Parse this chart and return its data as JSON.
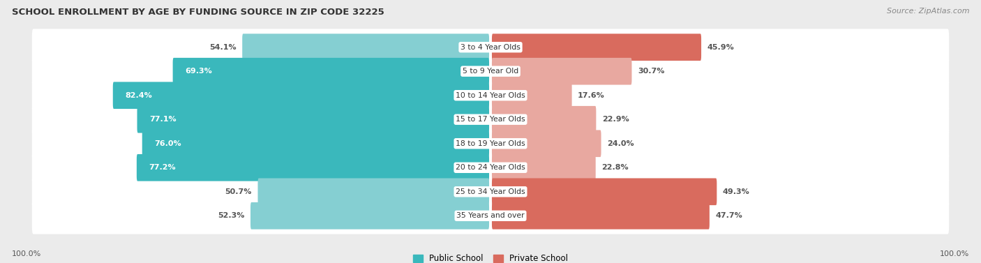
{
  "title": "SCHOOL ENROLLMENT BY AGE BY FUNDING SOURCE IN ZIP CODE 32225",
  "source": "Source: ZipAtlas.com",
  "categories": [
    "3 to 4 Year Olds",
    "5 to 9 Year Old",
    "10 to 14 Year Olds",
    "15 to 17 Year Olds",
    "18 to 19 Year Olds",
    "20 to 24 Year Olds",
    "25 to 34 Year Olds",
    "35 Years and over"
  ],
  "public_values": [
    54.1,
    69.3,
    82.4,
    77.1,
    76.0,
    77.2,
    50.7,
    52.3
  ],
  "private_values": [
    45.9,
    30.7,
    17.6,
    22.9,
    24.0,
    22.8,
    49.3,
    47.7
  ],
  "public_color_dark": "#3ab8bc",
  "public_color_light": "#85cfd2",
  "private_color_dark": "#d96b5e",
  "private_color_light": "#e8a8a0",
  "bg_color": "#ebebeb",
  "row_bg_even": "#f5f5f5",
  "row_bg_odd": "#e8e8e8",
  "bar_white_bg": "#ffffff",
  "legend_public": "Public School",
  "legend_private": "Private School",
  "axis_label_left": "100.0%",
  "axis_label_right": "100.0%",
  "label_inside_threshold_pub": 60,
  "label_inside_threshold_priv": 35
}
